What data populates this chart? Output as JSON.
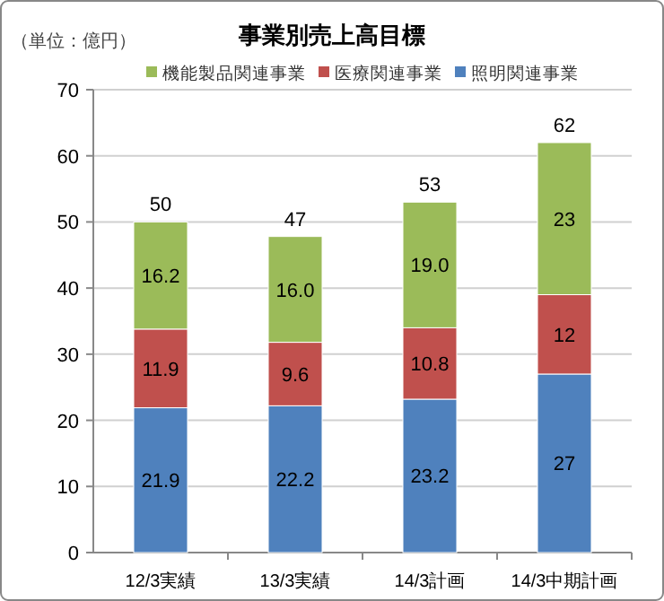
{
  "chart_data": {
    "type": "bar",
    "stacked": true,
    "title": "事業別売上高目標",
    "ylabel": "（単位：億円）",
    "categories": [
      "12/3実績",
      "13/3実績",
      "14/3計画",
      "14/3中期計画"
    ],
    "series": [
      {
        "name": "照明関連事業",
        "color": "#4f81bd",
        "values": [
          21.9,
          22.2,
          23.2,
          27
        ],
        "value_labels": [
          "21.9",
          "22.2",
          "23.2",
          "27"
        ]
      },
      {
        "name": "医療関連事業",
        "color": "#c0504d",
        "values": [
          11.9,
          9.6,
          10.8,
          12
        ],
        "value_labels": [
          "11.9",
          "9.6",
          "10.8",
          "12"
        ]
      },
      {
        "name": "機能製品関連事業",
        "color": "#9bbb59",
        "values": [
          16.2,
          16.0,
          19.0,
          23
        ],
        "value_labels": [
          "16.2",
          "16.0",
          "19.0",
          "23"
        ]
      }
    ],
    "totals": [
      "50",
      "47",
      "53",
      "62"
    ],
    "ylim": [
      0,
      70
    ],
    "yticks": [
      0,
      10,
      20,
      30,
      40,
      50,
      60,
      70
    ],
    "grid": "y",
    "legend": "top"
  }
}
